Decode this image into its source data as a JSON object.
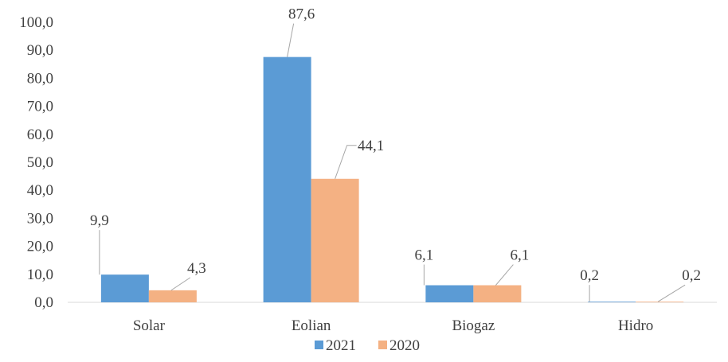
{
  "chart_data": {
    "type": "bar",
    "title": "",
    "xlabel": "",
    "ylabel": "",
    "categories": [
      "Solar",
      "Eolian",
      "Biogaz",
      "Hidro"
    ],
    "series": [
      {
        "name": "2021",
        "color": "#5b9bd5",
        "values": [
          9.9,
          87.6,
          6.1,
          0.2
        ],
        "labels": [
          "9,9",
          "87,6",
          "6,1",
          "0,2"
        ]
      },
      {
        "name": "2020",
        "color": "#f4b183",
        "values": [
          4.3,
          44.1,
          6.1,
          0.2
        ],
        "labels": [
          "4,3",
          "44,1",
          "6,1",
          "0,2"
        ]
      }
    ],
    "ylim": [
      0,
      100
    ],
    "yticks": [
      "0,0",
      "10,0",
      "20,0",
      "30,0",
      "40,0",
      "50,0",
      "60,0",
      "70,0",
      "80,0",
      "90,0",
      "100,0"
    ],
    "grid": false,
    "legend_position": "bottom",
    "data_label_callouts": true
  }
}
